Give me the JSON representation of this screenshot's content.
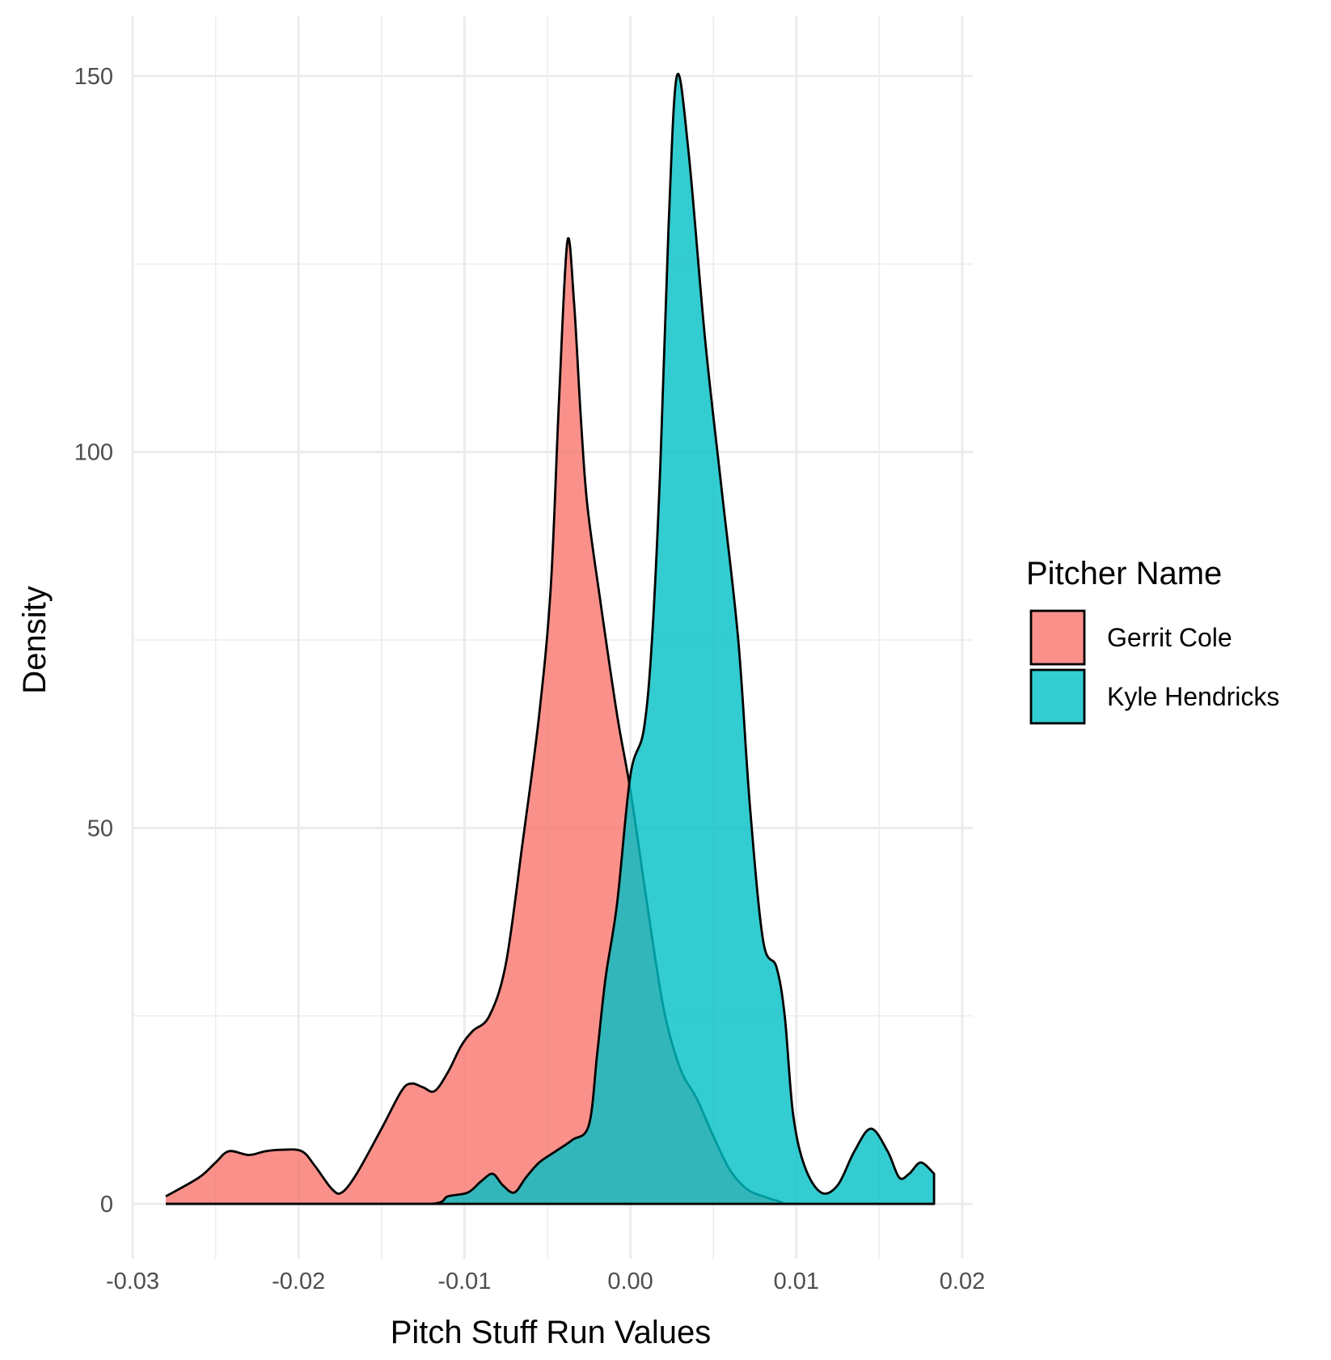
{
  "chart_data": {
    "type": "area",
    "chart_kind": "density",
    "xlabel": "Pitch Stuff Run Values",
    "ylabel": "Density",
    "xlim": [
      -0.03,
      0.02
    ],
    "ylim": [
      0,
      150
    ],
    "x_ticks": [
      -0.03,
      -0.02,
      -0.01,
      0.0,
      0.01,
      0.02
    ],
    "x_tick_labels": [
      "-0.03",
      "-0.02",
      "-0.01",
      "0.00",
      "0.01",
      "0.02"
    ],
    "y_ticks": [
      0,
      50,
      100,
      150
    ],
    "y_tick_labels": [
      "0",
      "50",
      "100",
      "150"
    ],
    "grid": true,
    "legend_title": "Pitcher Name",
    "legend_position": "right",
    "series": [
      {
        "name": "Gerrit Cole",
        "color": "#F8766D",
        "points": [
          [
            -0.028,
            1.0
          ],
          [
            -0.026,
            3.5
          ],
          [
            -0.025,
            5.5
          ],
          [
            -0.0242,
            7.0
          ],
          [
            -0.023,
            6.5
          ],
          [
            -0.022,
            7.0
          ],
          [
            -0.021,
            7.2
          ],
          [
            -0.0198,
            7.0
          ],
          [
            -0.019,
            5.0
          ],
          [
            -0.018,
            2.0
          ],
          [
            -0.0174,
            1.5
          ],
          [
            -0.0165,
            4.0
          ],
          [
            -0.015,
            10.0
          ],
          [
            -0.0138,
            15.0
          ],
          [
            -0.0132,
            16.0
          ],
          [
            -0.0125,
            15.5
          ],
          [
            -0.0118,
            15.0
          ],
          [
            -0.011,
            17.5
          ],
          [
            -0.0102,
            21.0
          ],
          [
            -0.0095,
            23.0
          ],
          [
            -0.0085,
            25.0
          ],
          [
            -0.0075,
            32.0
          ],
          [
            -0.0065,
            48.0
          ],
          [
            -0.0055,
            65.0
          ],
          [
            -0.0048,
            82.0
          ],
          [
            -0.0043,
            107.0
          ],
          [
            -0.0038,
            128.0
          ],
          [
            -0.0034,
            120.0
          ],
          [
            -0.003,
            105.0
          ],
          [
            -0.0026,
            93.0
          ],
          [
            -0.0018,
            80.0
          ],
          [
            -0.0008,
            65.0
          ],
          [
            0.0,
            55.0
          ],
          [
            0.001,
            40.0
          ],
          [
            0.002,
            26.0
          ],
          [
            0.003,
            18.0
          ],
          [
            0.004,
            14.0
          ],
          [
            0.005,
            9.0
          ],
          [
            0.006,
            4.5
          ],
          [
            0.007,
            2.0
          ],
          [
            0.008,
            1.0
          ],
          [
            0.009,
            0.3
          ],
          [
            0.0095,
            0.0
          ],
          [
            0.0183,
            0.0
          ]
        ]
      },
      {
        "name": "Kyle Hendricks",
        "color": "#00BFC4",
        "points": [
          [
            -0.028,
            0.0
          ],
          [
            -0.012,
            0.0
          ],
          [
            -0.011,
            1.0
          ],
          [
            -0.0098,
            1.5
          ],
          [
            -0.009,
            3.0
          ],
          [
            -0.0083,
            4.0
          ],
          [
            -0.0077,
            2.5
          ],
          [
            -0.007,
            1.5
          ],
          [
            -0.0063,
            3.5
          ],
          [
            -0.0055,
            5.5
          ],
          [
            -0.0045,
            7.0
          ],
          [
            -0.0035,
            8.5
          ],
          [
            -0.0025,
            10.5
          ],
          [
            -0.002,
            20.0
          ],
          [
            -0.0015,
            30.0
          ],
          [
            -0.0008,
            40.0
          ],
          [
            0.0,
            57.0
          ],
          [
            0.0008,
            63.0
          ],
          [
            0.0013,
            75.0
          ],
          [
            0.0018,
            98.0
          ],
          [
            0.0023,
            130.0
          ],
          [
            0.0028,
            150.0
          ],
          [
            0.0035,
            140.0
          ],
          [
            0.0045,
            115.0
          ],
          [
            0.0055,
            95.0
          ],
          [
            0.0065,
            75.0
          ],
          [
            0.0072,
            53.0
          ],
          [
            0.008,
            35.0
          ],
          [
            0.0088,
            31.5
          ],
          [
            0.0093,
            25.0
          ],
          [
            0.0098,
            12.0
          ],
          [
            0.0105,
            5.0
          ],
          [
            0.0115,
            1.5
          ],
          [
            0.0125,
            2.5
          ],
          [
            0.0135,
            7.0
          ],
          [
            0.0145,
            10.0
          ],
          [
            0.0155,
            7.0
          ],
          [
            0.0162,
            3.5
          ],
          [
            0.0168,
            4.0
          ],
          [
            0.0175,
            5.5
          ],
          [
            0.0183,
            4.0
          ]
        ]
      }
    ]
  }
}
